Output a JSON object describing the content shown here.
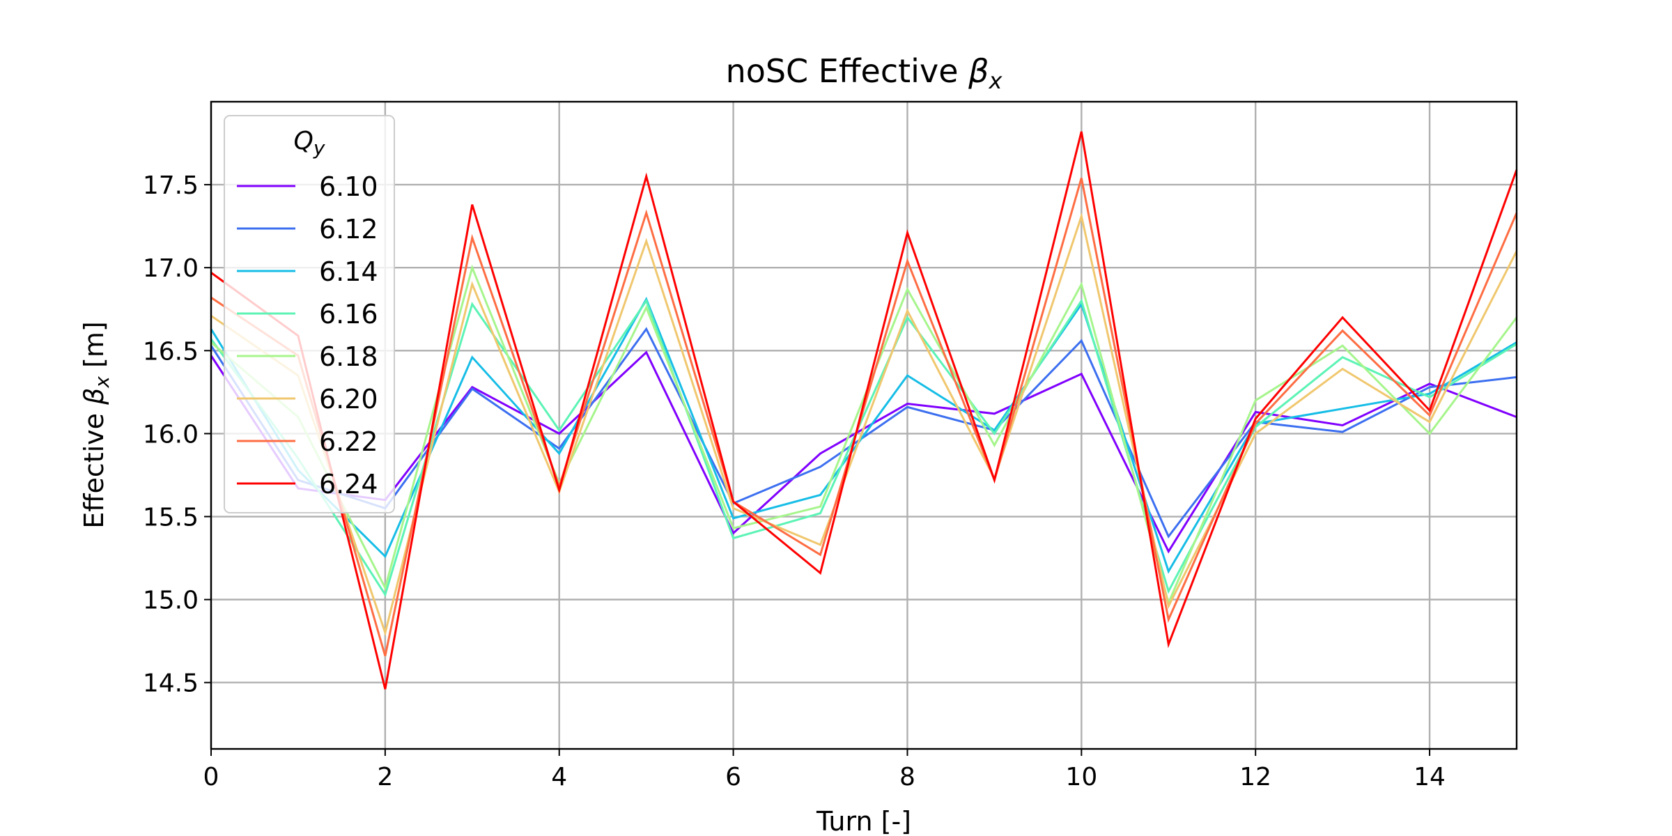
{
  "chart_data": {
    "type": "line",
    "title": "noSC Effective",
    "title_symbol": "β",
    "title_subscript": "x",
    "xlabel": "Turn [-]",
    "ylabel_prefix": "Effective",
    "ylabel_symbol": "β",
    "ylabel_subscript": "x",
    "ylabel_suffix": "[m]",
    "xlim": [
      0,
      15
    ],
    "ylim": [
      14.1,
      18.0
    ],
    "xticks": [
      0,
      2,
      4,
      6,
      8,
      10,
      12,
      14
    ],
    "yticks": [
      14.5,
      15.0,
      15.5,
      16.0,
      16.5,
      17.0,
      17.5
    ],
    "xtick_labels": [
      "0",
      "2",
      "4",
      "6",
      "8",
      "10",
      "12",
      "14"
    ],
    "ytick_labels": [
      "14.5",
      "15.0",
      "15.5",
      "16.0",
      "16.5",
      "17.0",
      "17.5"
    ],
    "grid": true,
    "legend_placement": "upper-left",
    "legend_title_symbol": "Q",
    "legend_title_subscript": "y",
    "x": [
      0,
      1,
      2,
      3,
      4,
      5,
      6,
      7,
      8,
      9,
      10,
      11,
      12,
      13,
      14,
      15
    ],
    "series": [
      {
        "name": "6.10",
        "color": "#8000ff",
        "values": [
          16.47,
          15.67,
          15.6,
          16.28,
          16.0,
          16.49,
          15.4,
          15.88,
          16.18,
          16.12,
          16.36,
          15.29,
          16.13,
          16.05,
          16.3,
          16.1
        ]
      },
      {
        "name": "6.12",
        "color": "#3c6ff0",
        "values": [
          16.53,
          15.72,
          15.55,
          16.27,
          15.91,
          16.63,
          15.58,
          15.8,
          16.16,
          16.02,
          16.56,
          15.38,
          16.07,
          16.01,
          16.28,
          16.34
        ]
      },
      {
        "name": "6.14",
        "color": "#16bde6",
        "values": [
          16.63,
          15.78,
          15.26,
          16.46,
          15.88,
          16.81,
          15.49,
          15.63,
          16.35,
          16.02,
          16.78,
          15.17,
          16.06,
          16.15,
          16.24,
          16.55
        ]
      },
      {
        "name": "6.16",
        "color": "#5cf3b5",
        "values": [
          16.57,
          15.85,
          15.03,
          16.78,
          16.02,
          16.8,
          15.37,
          15.52,
          16.7,
          16.0,
          16.8,
          15.05,
          16.04,
          16.46,
          16.22,
          16.54
        ]
      },
      {
        "name": "6.18",
        "color": "#a6f58c",
        "values": [
          16.55,
          16.1,
          15.07,
          17.0,
          15.7,
          16.76,
          15.43,
          15.56,
          16.87,
          15.93,
          16.9,
          14.98,
          16.2,
          16.53,
          16.0,
          16.7
        ]
      },
      {
        "name": "6.20",
        "color": "#f0c76e",
        "values": [
          16.71,
          16.35,
          14.8,
          16.9,
          15.65,
          17.16,
          15.55,
          15.33,
          16.74,
          15.73,
          17.31,
          14.96,
          16.0,
          16.39,
          16.07,
          17.1
        ]
      },
      {
        "name": "6.22",
        "color": "#ff6d43",
        "values": [
          16.82,
          16.47,
          14.66,
          17.18,
          15.68,
          17.33,
          15.59,
          15.27,
          17.04,
          15.72,
          17.54,
          14.88,
          16.06,
          16.62,
          16.11,
          17.33
        ]
      },
      {
        "name": "6.24",
        "color": "#ff0000",
        "values": [
          16.97,
          16.59,
          14.46,
          17.38,
          15.66,
          17.55,
          15.59,
          15.16,
          17.21,
          15.72,
          17.82,
          14.73,
          16.09,
          16.7,
          16.14,
          17.59
        ]
      }
    ]
  }
}
